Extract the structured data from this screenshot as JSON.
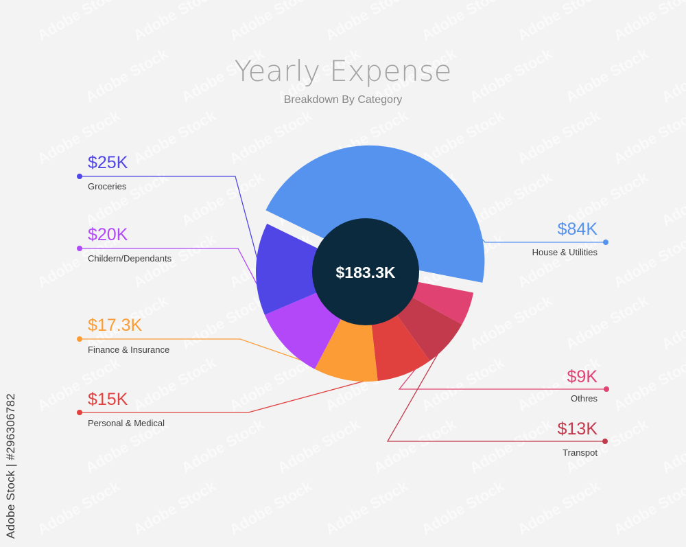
{
  "chart_data": {
    "type": "pie",
    "title": "Yearly Expense",
    "subtitle": "Breakdown By Category",
    "total_label": "$183.3K",
    "slices": [
      {
        "label": "House & Utilities",
        "value_label": "$84K",
        "value": 84,
        "color": "#5693ee",
        "side": "right",
        "offset": true
      },
      {
        "label": "Othres",
        "value_label": "$9K",
        "value": 9,
        "color": "#e04372",
        "side": "right",
        "offset": false
      },
      {
        "label": "Transpot",
        "value_label": "$13K",
        "value": 13,
        "color": "#c23a4c",
        "side": "right",
        "offset": false
      },
      {
        "label": "Personal & Medical",
        "value_label": "$15K",
        "value": 15,
        "color": "#e0413f",
        "side": "left",
        "offset": false
      },
      {
        "label": "Finance & Insurance",
        "value_label": "$17.3K",
        "value": 17.3,
        "color": "#fb9c36",
        "side": "left",
        "offset": false
      },
      {
        "label": "Childern/Dependants",
        "value_label": "$20K",
        "value": 20,
        "color": "#b248f8",
        "side": "left",
        "offset": false
      },
      {
        "label": "Groceries",
        "value_label": "$25K",
        "value": 25,
        "color": "#5046e5",
        "side": "left",
        "offset": false
      }
    ],
    "center_color": "#0c2a3e",
    "title_color": "#a3a3a3",
    "subtitle_color": "#878787",
    "label_color": "#3d3d3d"
  },
  "watermark": {
    "brand": "Adobe Stock",
    "side_text": "Adobe Stock | #296306782"
  }
}
